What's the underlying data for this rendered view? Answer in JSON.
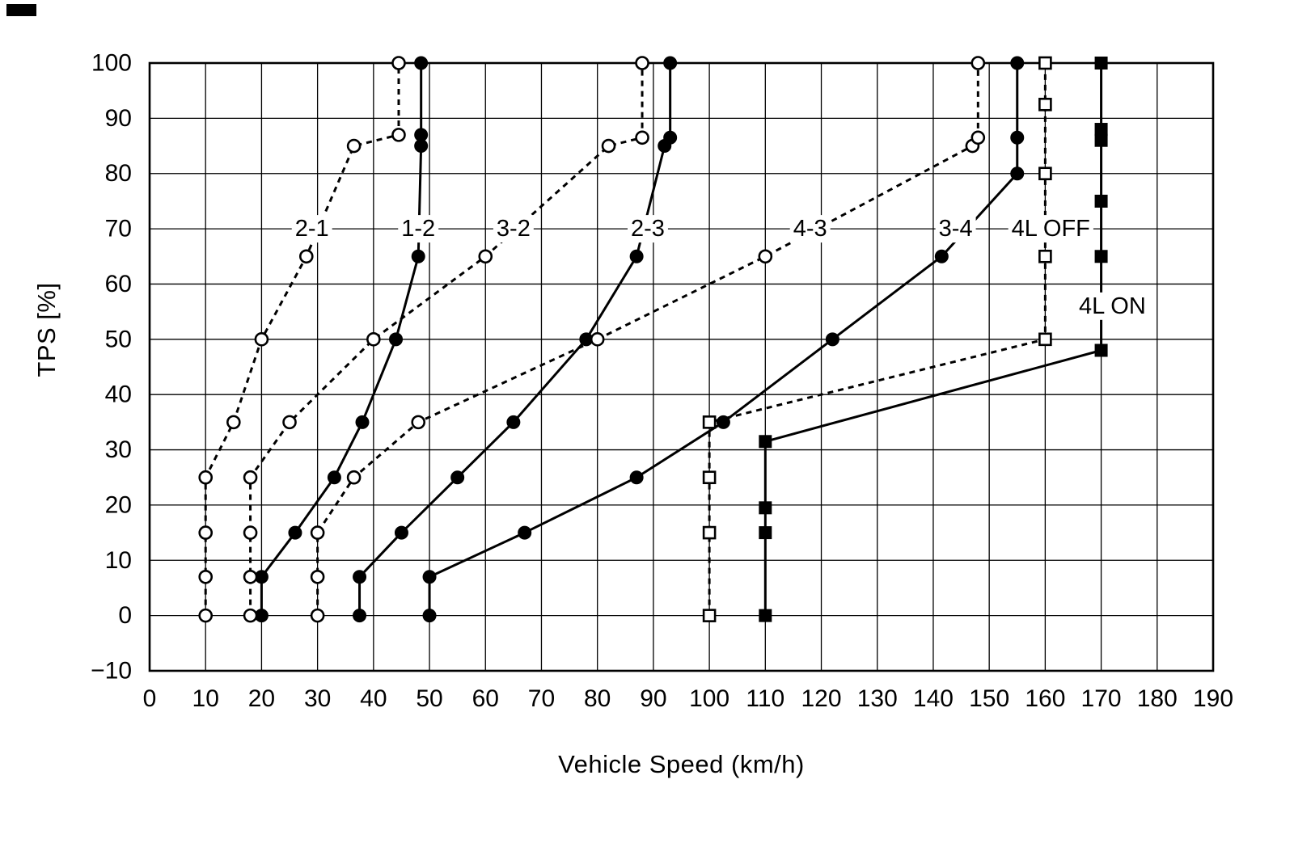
{
  "chart_data": {
    "type": "line",
    "title": "",
    "xlabel": "Vehicle Speed (km/h)",
    "ylabel": "TPS [%]",
    "xlim": [
      0,
      190
    ],
    "ylim": [
      -10,
      100
    ],
    "xticks": [
      0,
      10,
      20,
      30,
      40,
      50,
      60,
      70,
      80,
      90,
      100,
      110,
      120,
      130,
      140,
      150,
      160,
      170,
      180,
      190
    ],
    "yticks": [
      -10,
      0,
      10,
      20,
      30,
      40,
      50,
      60,
      70,
      80,
      90,
      100
    ],
    "grid": true,
    "legend_position": "none",
    "ink_color": "#000000",
    "background_color": "#ffffff",
    "series": [
      {
        "name": "2-1",
        "line_style": "dashed",
        "marker": "open-circle",
        "points": [
          [
            10,
            0
          ],
          [
            10,
            7
          ],
          [
            10,
            15
          ],
          [
            10,
            25
          ],
          [
            15,
            35
          ],
          [
            20,
            50
          ],
          [
            28,
            65
          ],
          [
            36.5,
            85
          ],
          [
            44.5,
            87
          ],
          [
            44.5,
            100
          ]
        ]
      },
      {
        "name": "1-2",
        "line_style": "solid",
        "marker": "filled-circle",
        "points": [
          [
            20,
            0
          ],
          [
            20,
            7
          ],
          [
            26,
            15
          ],
          [
            33,
            25
          ],
          [
            38,
            35
          ],
          [
            44,
            50
          ],
          [
            48,
            65
          ],
          [
            48.5,
            85
          ],
          [
            48.5,
            87
          ],
          [
            48.5,
            100
          ]
        ]
      },
      {
        "name": "3-2",
        "line_style": "dashed",
        "marker": "open-circle",
        "points": [
          [
            18,
            0
          ],
          [
            18,
            7
          ],
          [
            18,
            15
          ],
          [
            18,
            25
          ],
          [
            25,
            35
          ],
          [
            40,
            50
          ],
          [
            60,
            65
          ],
          [
            82,
            85
          ],
          [
            88,
            86.5
          ],
          [
            88,
            100
          ]
        ]
      },
      {
        "name": "2-3",
        "line_style": "solid",
        "marker": "filled-circle",
        "points": [
          [
            37.5,
            0
          ],
          [
            37.5,
            7
          ],
          [
            45,
            15
          ],
          [
            55,
            25
          ],
          [
            65,
            35
          ],
          [
            78,
            50
          ],
          [
            87,
            65
          ],
          [
            92,
            85
          ],
          [
            93,
            86.5
          ],
          [
            93,
            100
          ]
        ]
      },
      {
        "name": "4-3",
        "line_style": "dashed",
        "marker": "open-circle",
        "points": [
          [
            30,
            0
          ],
          [
            30,
            7
          ],
          [
            30,
            15
          ],
          [
            36.5,
            25
          ],
          [
            48,
            35
          ],
          [
            80,
            50
          ],
          [
            110,
            65
          ],
          [
            147,
            85
          ],
          [
            148,
            86.5
          ],
          [
            148,
            100
          ]
        ]
      },
      {
        "name": "3-4",
        "line_style": "solid",
        "marker": "filled-circle",
        "points": [
          [
            50,
            0
          ],
          [
            50,
            7
          ],
          [
            67,
            15
          ],
          [
            87,
            25
          ],
          [
            102.5,
            35
          ],
          [
            122,
            50
          ],
          [
            141.5,
            65
          ],
          [
            155,
            80
          ],
          [
            155,
            86.5
          ],
          [
            155,
            100
          ]
        ]
      },
      {
        "name": "4L OFF",
        "line_style": "dashed",
        "marker": "open-square",
        "points": [
          [
            100,
            0
          ],
          [
            100,
            15
          ],
          [
            100,
            25
          ],
          [
            100,
            35
          ],
          [
            160,
            50
          ],
          [
            160,
            65
          ],
          [
            160,
            80
          ],
          [
            160,
            92.5
          ],
          [
            160,
            100
          ]
        ]
      },
      {
        "name": "4L ON",
        "line_style": "solid",
        "marker": "filled-square",
        "points": [
          [
            110,
            0
          ],
          [
            110,
            15
          ],
          [
            110,
            19.5
          ],
          [
            110,
            31.5
          ],
          [
            170,
            48
          ],
          [
            170,
            65
          ],
          [
            170,
            75
          ],
          [
            170,
            86
          ],
          [
            170,
            88
          ],
          [
            170,
            100
          ]
        ]
      }
    ],
    "annotations": [
      {
        "text": "2-1",
        "x": 29,
        "y": 70
      },
      {
        "text": "1-2",
        "x": 48,
        "y": 70
      },
      {
        "text": "3-2",
        "x": 65,
        "y": 70
      },
      {
        "text": "2-3",
        "x": 89,
        "y": 70
      },
      {
        "text": "4-3",
        "x": 118,
        "y": 70
      },
      {
        "text": "3-4",
        "x": 144,
        "y": 70
      },
      {
        "text": "4L OFF",
        "x": 161,
        "y": 70
      },
      {
        "text": "4L ON",
        "x": 172,
        "y": 56
      }
    ]
  }
}
